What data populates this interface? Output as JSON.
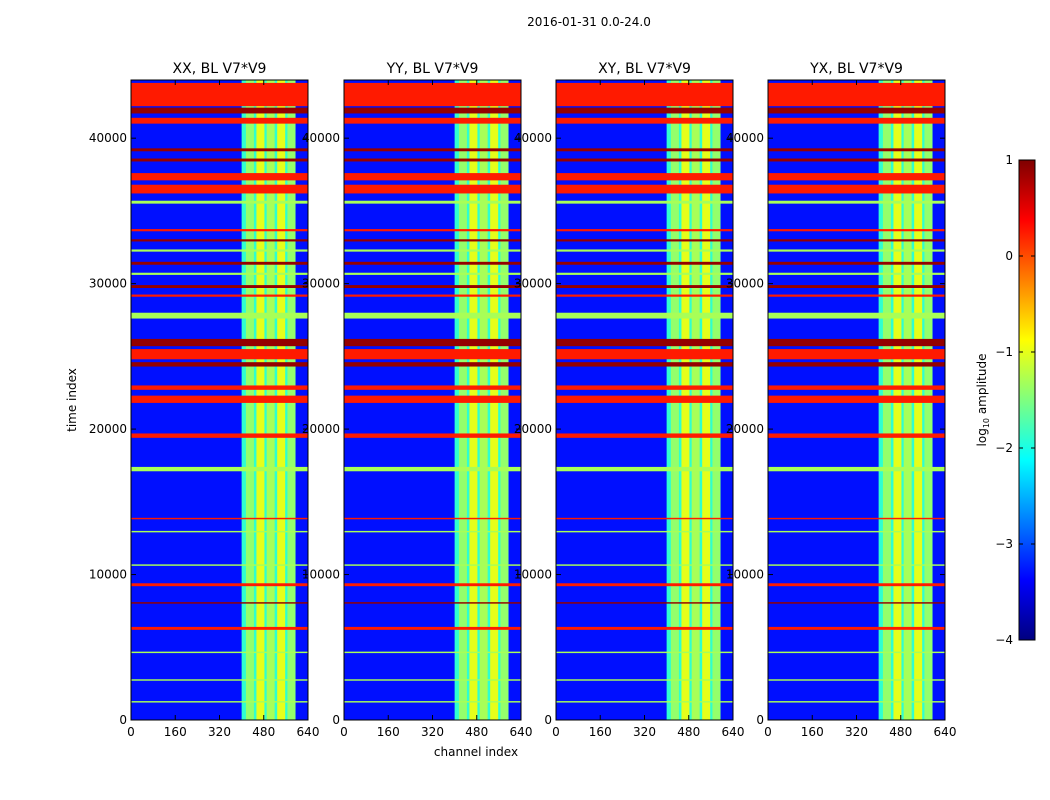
{
  "chart_data": {
    "type": "heatmap",
    "suptitle": "2016-01-31 0.0-24.0",
    "xlabel": "channel index",
    "ylabel": "time index",
    "xlim": [
      0,
      640
    ],
    "ylim": [
      0,
      44000
    ],
    "x_ticks": [
      0,
      160,
      320,
      480,
      640
    ],
    "x_tick_labels": [
      "0",
      "160",
      "320",
      "480",
      "640"
    ],
    "y_ticks": [
      0,
      10000,
      20000,
      30000,
      40000
    ],
    "y_tick_labels": [
      "0",
      "10000",
      "20000",
      "30000",
      "40000"
    ],
    "colorbar": {
      "label_prefix": "log",
      "label_sub": "10",
      "label_suffix": " amplitude",
      "range": [
        -4,
        1
      ],
      "ticks": [
        1,
        0,
        -1,
        -2,
        -3,
        -4
      ],
      "tick_labels": [
        "1",
        "0",
        "−1",
        "−2",
        "−3",
        "−4"
      ],
      "colormap": "jet"
    },
    "panels": [
      {
        "title": "XX, BL V7*V9"
      },
      {
        "title": "YY, BL V7*V9"
      },
      {
        "title": "XY, BL V7*V9"
      },
      {
        "title": "YX, BL V7*V9"
      }
    ],
    "background_level": -3.3,
    "rfi_channel_band": [
      400,
      595
    ],
    "rfi_channel_levels": [
      {
        "channel": 430,
        "level": -1.4
      },
      {
        "channel": 468,
        "level": -1.0
      },
      {
        "channel": 505,
        "level": -1.3
      },
      {
        "channel": 543,
        "level": -1.0
      },
      {
        "channel": 580,
        "level": -1.4
      }
    ],
    "horizontal_bands": [
      {
        "t0": 42200,
        "t1": 43800,
        "level": 0.25
      },
      {
        "t0": 41700,
        "t1": 42100,
        "level": 0.9
      },
      {
        "t0": 41000,
        "t1": 41400,
        "level": 0.25
      },
      {
        "t0": 39100,
        "t1": 39300,
        "level": 0.9
      },
      {
        "t0": 38400,
        "t1": 38600,
        "level": 0.9
      },
      {
        "t0": 37100,
        "t1": 37600,
        "level": 0.25
      },
      {
        "t0": 36200,
        "t1": 36800,
        "level": 0.25
      },
      {
        "t0": 35500,
        "t1": 35700,
        "level": -1.3
      },
      {
        "t0": 33600,
        "t1": 33750,
        "level": 0.25
      },
      {
        "t0": 32900,
        "t1": 33050,
        "level": 0.9
      },
      {
        "t0": 32200,
        "t1": 32350,
        "level": -1.3
      },
      {
        "t0": 31300,
        "t1": 31500,
        "level": 0.9
      },
      {
        "t0": 30600,
        "t1": 30750,
        "level": -1.3
      },
      {
        "t0": 29700,
        "t1": 29900,
        "level": 0.9
      },
      {
        "t0": 29100,
        "t1": 29250,
        "level": 0.25
      },
      {
        "t0": 27600,
        "t1": 28000,
        "level": -1.3
      },
      {
        "t0": 25700,
        "t1": 26200,
        "level": 0.9
      },
      {
        "t0": 24800,
        "t1": 25500,
        "level": 0.25
      },
      {
        "t0": 24300,
        "t1": 24600,
        "level": 0.9
      },
      {
        "t0": 22700,
        "t1": 23000,
        "level": 0.25
      },
      {
        "t0": 21800,
        "t1": 22300,
        "level": 0.25
      },
      {
        "t0": 19400,
        "t1": 19700,
        "level": 0.25
      },
      {
        "t0": 17100,
        "t1": 17400,
        "level": -1.3
      },
      {
        "t0": 13800,
        "t1": 13900,
        "level": 0.25
      },
      {
        "t0": 12900,
        "t1": 13000,
        "level": -1.3
      },
      {
        "t0": 10600,
        "t1": 10700,
        "level": -1.3
      },
      {
        "t0": 9200,
        "t1": 9400,
        "level": 0.25
      },
      {
        "t0": 8000,
        "t1": 8100,
        "level": 0.9
      },
      {
        "t0": 6200,
        "t1": 6400,
        "level": 0.25
      },
      {
        "t0": 4600,
        "t1": 4700,
        "level": -1.3
      },
      {
        "t0": 2700,
        "t1": 2800,
        "level": -1.3
      },
      {
        "t0": 1200,
        "t1": 1300,
        "level": -1.3
      }
    ]
  }
}
